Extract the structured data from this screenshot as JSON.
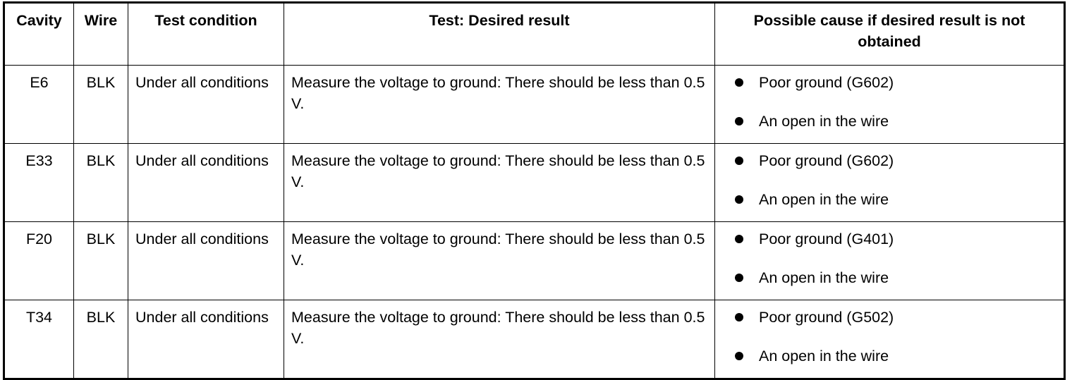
{
  "headers": [
    "Cavity",
    "Wire",
    "Test condition",
    "Test: Desired result",
    "Possible cause if desired result is not obtained"
  ],
  "rows": [
    {
      "cavity": "E6",
      "wire": "BLK",
      "condition": "Under all conditions",
      "result": "Measure the voltage to ground: There should be less than 0.5 V.",
      "causes": [
        "Poor ground (G602)",
        "An open in the wire"
      ]
    },
    {
      "cavity": "E33",
      "wire": "BLK",
      "condition": "Under all conditions",
      "result": "Measure the voltage to ground: There should be less than 0.5 V.",
      "causes": [
        "Poor ground (G602)",
        "An open in the wire"
      ]
    },
    {
      "cavity": "F20",
      "wire": "BLK",
      "condition": "Under all conditions",
      "result": "Measure the voltage to ground: There should be less than 0.5 V.",
      "causes": [
        "Poor ground (G401)",
        "An open in the wire"
      ]
    },
    {
      "cavity": "T34",
      "wire": "BLK",
      "condition": "Under all conditions",
      "result": "Measure the voltage to ground: There should be less than 0.5 V.",
      "causes": [
        "Poor ground (G502)",
        "An open in the wire"
      ]
    }
  ]
}
